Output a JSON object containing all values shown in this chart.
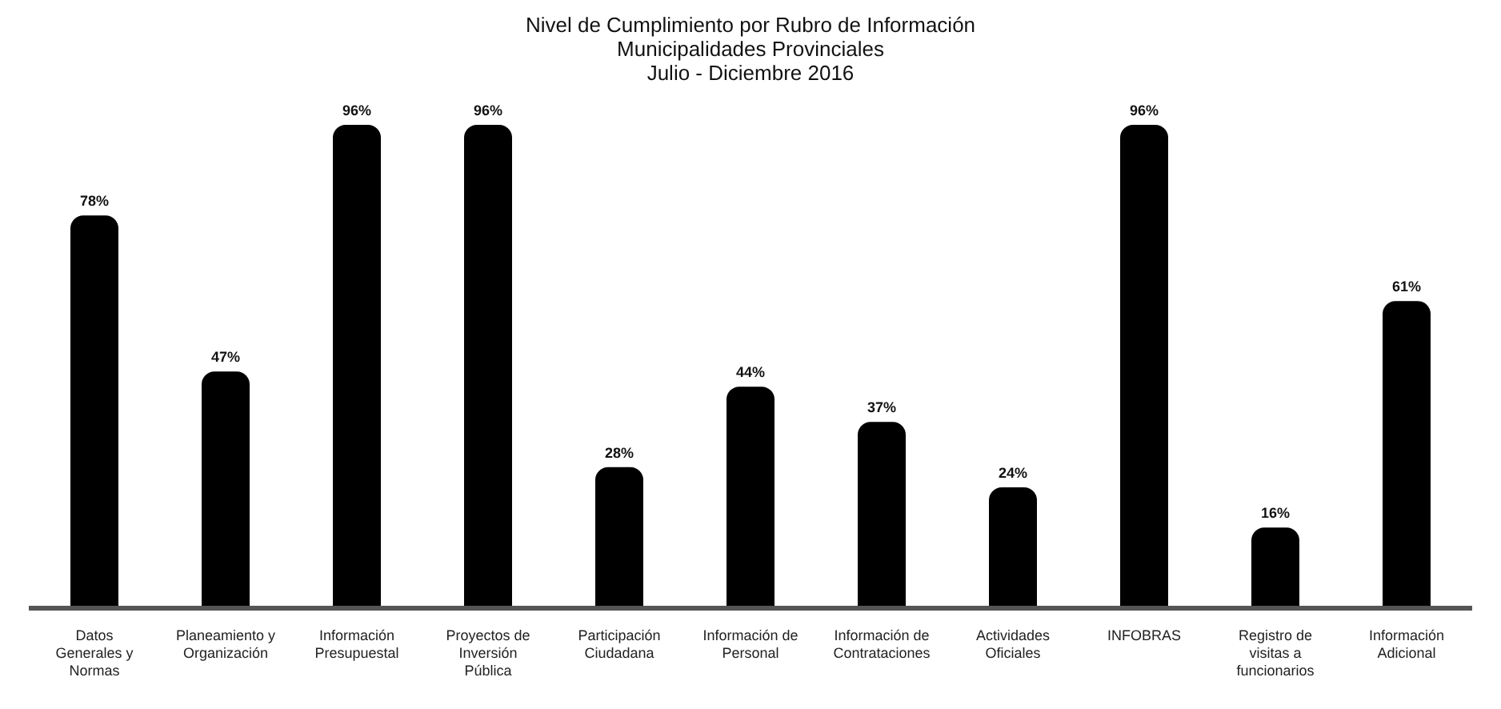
{
  "chart_data": {
    "type": "bar",
    "title": "Nivel de Cumplimiento por Rubro de Información",
    "subtitle": "Municipalidades Provinciales\nJulio - Diciembre 2016",
    "categories": [
      "Datos Generales y Normas",
      "Planeamiento y Organización",
      "Información Presupuestal",
      "Proyectos de Inversión Pública",
      "Participación Ciudadana",
      "Información de Personal",
      "Información de Contrataciones",
      "Actividades Oficiales",
      "INFOBRAS",
      "Registro de visitas a funcionarios",
      "Información Adicional"
    ],
    "values": [
      78,
      47,
      96,
      96,
      28,
      44,
      37,
      24,
      96,
      16,
      61
    ],
    "value_labels": [
      "78%",
      "47%",
      "96%",
      "96%",
      "28%",
      "44%",
      "37%",
      "24%",
      "96%",
      "16%",
      "61%"
    ],
    "color": "#000000",
    "grid": false,
    "legend": false
  }
}
